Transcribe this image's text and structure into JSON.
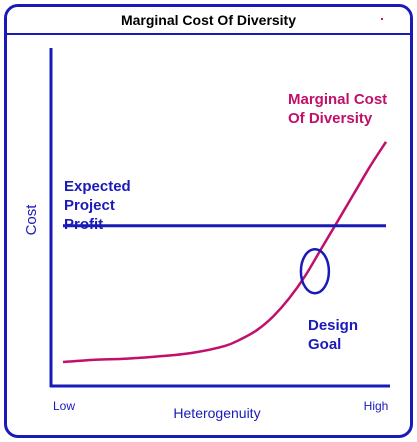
{
  "chart_data": {
    "type": "line",
    "title": "Marginal Cost Of Diversity",
    "xlabel": "Heterogenuity",
    "ylabel": "Cost",
    "x_ticks": [
      "Low",
      "High"
    ],
    "series": [
      {
        "name": "Marginal Cost Of Diversity",
        "name_lines": [
          "Marginal Cost",
          "Of Diversity"
        ],
        "color": "#c0106a",
        "x": [
          0.0,
          0.1,
          0.2,
          0.3,
          0.4,
          0.5,
          0.55,
          0.6,
          0.65,
          0.7,
          0.75,
          0.8,
          0.85,
          0.9,
          0.95,
          1.0
        ],
        "y": [
          0.0,
          0.01,
          0.015,
          0.025,
          0.04,
          0.07,
          0.1,
          0.14,
          0.2,
          0.28,
          0.38,
          0.5,
          0.62,
          0.74,
          0.86,
          0.97
        ]
      },
      {
        "name": "Expected Project Profit",
        "name_lines": [
          "Expected",
          "Project",
          "Profit"
        ],
        "color": "#1a1ab8",
        "x": [
          0.0,
          1.0
        ],
        "y": [
          0.6,
          0.6
        ]
      }
    ],
    "annotations": [
      {
        "lines": [
          "Design",
          "Goal"
        ],
        "marker": "ellipse",
        "x": 0.78,
        "y": 0.4,
        "color": "#1a1ab8"
      }
    ],
    "xlim": [
      0,
      1
    ],
    "ylim": [
      0,
      1
    ],
    "grid": false,
    "legend": "none"
  },
  "colors": {
    "border": "#1a1ab8",
    "curve": "#c0106a",
    "axis": "#1a1ab8"
  }
}
